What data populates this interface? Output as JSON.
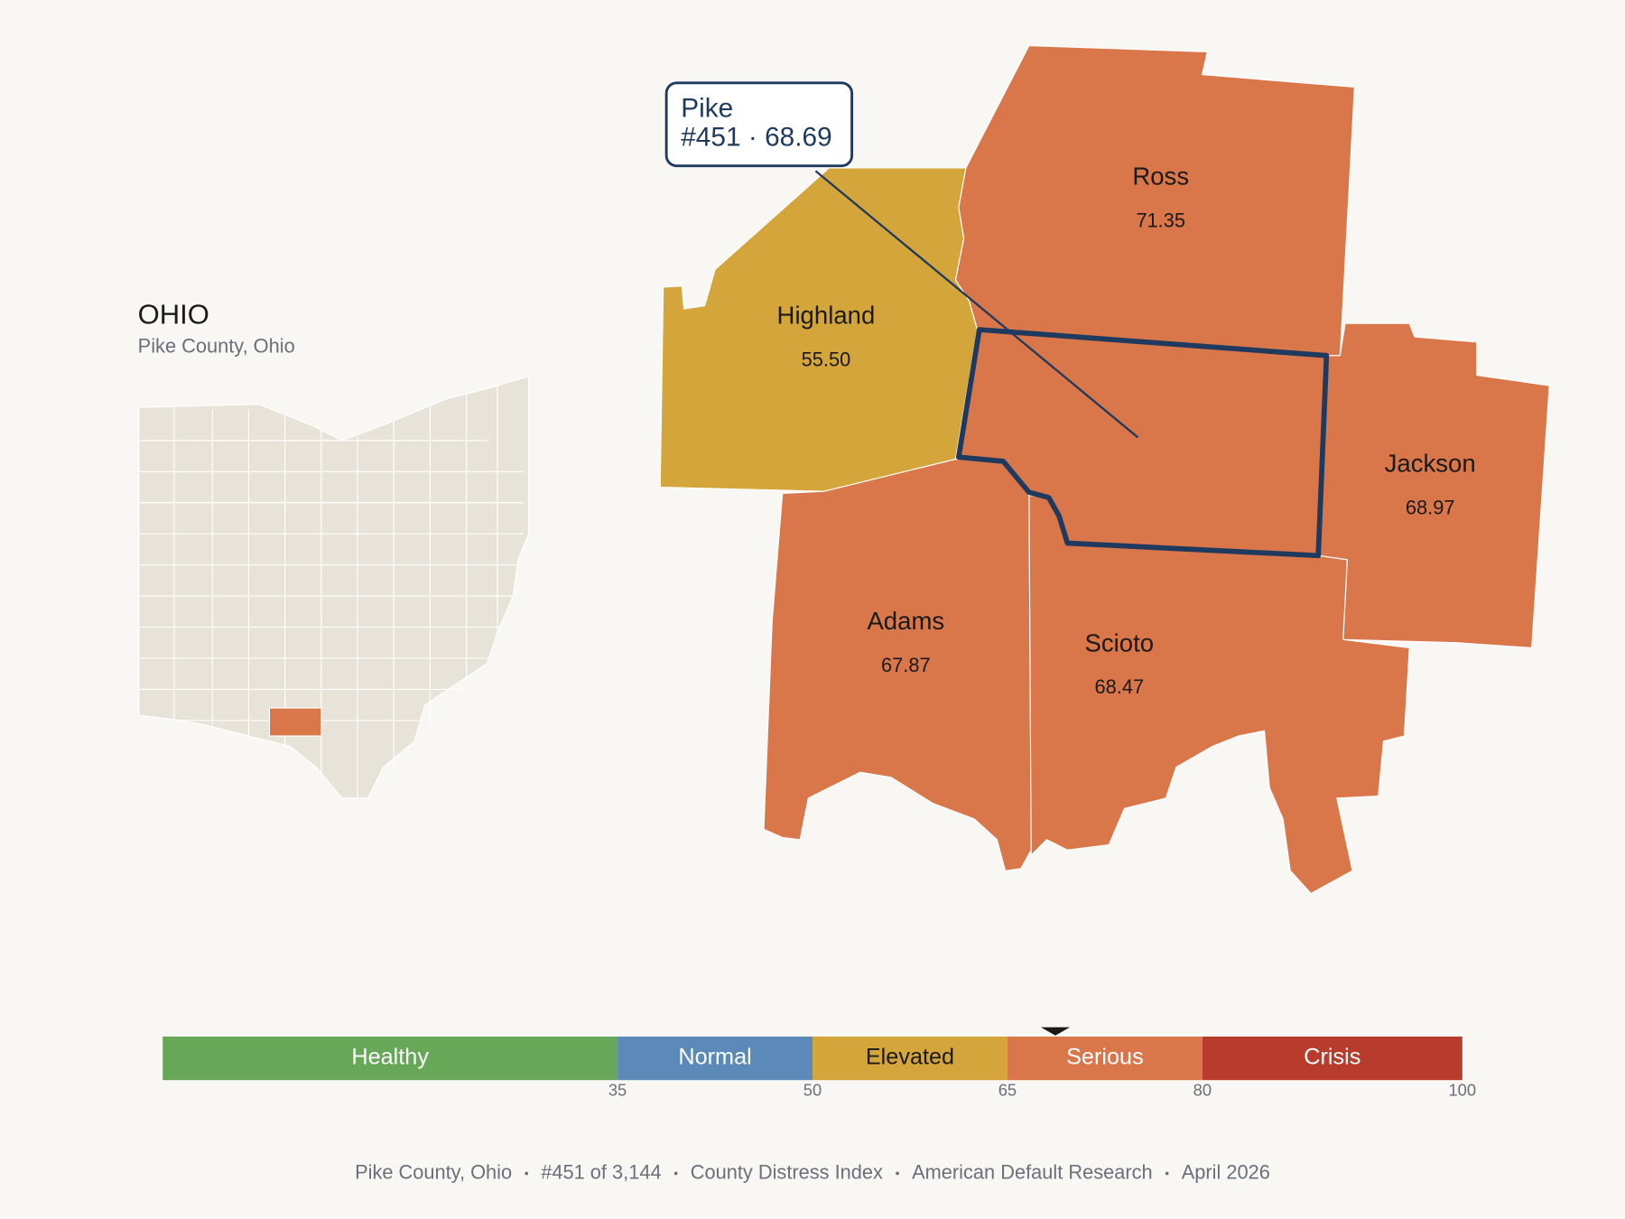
{
  "title": "OHIO",
  "subtitle": "Pike County, Ohio",
  "selected": {
    "name": "Pike",
    "label": "#451 · 68.69",
    "value": 68.69
  },
  "counties": [
    {
      "name": "Ross",
      "value": 71.35,
      "value_label": "71.35"
    },
    {
      "name": "Highland",
      "value": 55.5,
      "value_label": "55.50"
    },
    {
      "name": "Jackson",
      "value": 68.97,
      "value_label": "68.97"
    },
    {
      "name": "Adams",
      "value": 67.87,
      "value_label": "67.87"
    },
    {
      "name": "Scioto",
      "value": 68.47,
      "value_label": "68.47"
    }
  ],
  "scale": {
    "range": [
      0,
      100
    ],
    "ticks": [
      35,
      50,
      65,
      80,
      100
    ],
    "bands": [
      {
        "label": "Healthy",
        "color": "#67a758"
      },
      {
        "label": "Normal",
        "color": "#5b8ab8"
      },
      {
        "label": "Elevated",
        "color": "#d4a53a"
      },
      {
        "label": "Serious",
        "color": "#d9774a"
      },
      {
        "label": "Crisis",
        "color": "#b83c2b"
      }
    ]
  },
  "footer": [
    "Pike County, Ohio",
    "#451 of 3,144",
    "County Distress Index",
    "American Default Research",
    "April 2026"
  ]
}
